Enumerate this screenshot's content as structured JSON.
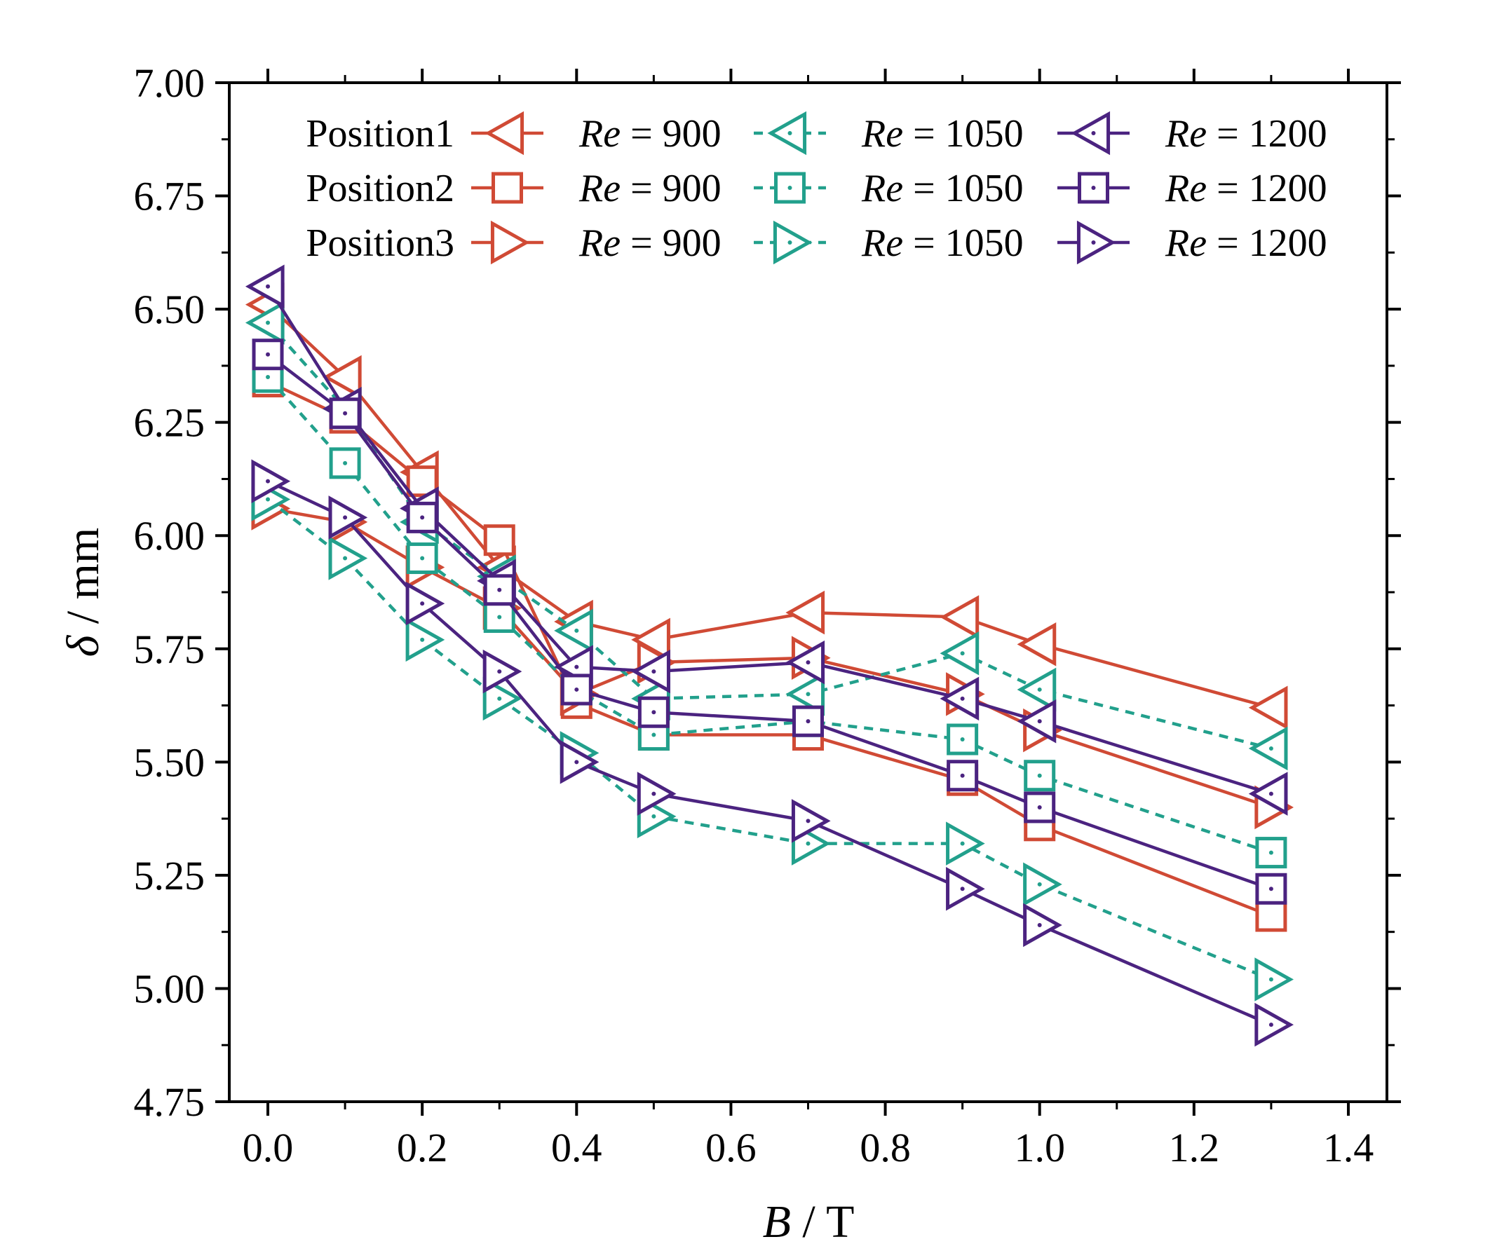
{
  "chart_data": {
    "type": "line",
    "xlabel": {
      "var": "B",
      "unit": " / T"
    },
    "ylabel": {
      "var": "δ",
      "unit": " / mm"
    },
    "xlim": [
      -0.05,
      1.45
    ],
    "ylim": [
      4.75,
      7.0
    ],
    "xticks": [
      0.0,
      0.2,
      0.4,
      0.6,
      0.8,
      1.0,
      1.2,
      1.4
    ],
    "xtick_labels": [
      "0.0",
      "0.2",
      "0.4",
      "0.6",
      "0.8",
      "1.0",
      "1.2",
      "1.4"
    ],
    "yticks": [
      4.75,
      5.0,
      5.25,
      5.5,
      5.75,
      6.0,
      6.25,
      6.5,
      6.75,
      7.0
    ],
    "ytick_labels": [
      "4.75",
      "5.00",
      "5.25",
      "5.50",
      "5.75",
      "6.00",
      "6.25",
      "6.50",
      "6.75",
      "7.00"
    ],
    "grid": false,
    "legend_position": "top",
    "colors": {
      "re900": "#d04a35",
      "re1050": "#22a08c",
      "re1200": "#4b2380"
    },
    "legend": {
      "rows": [
        "Position1",
        "Position2",
        "Position3"
      ],
      "re_prefix": "Re",
      "re_values": [
        "= 900",
        "= 1050",
        "= 1200"
      ]
    },
    "x": [
      0.0,
      0.1,
      0.2,
      0.3,
      0.4,
      0.5,
      0.7,
      0.9,
      1.0,
      1.3
    ],
    "series": [
      {
        "position": "Position1",
        "re": "900",
        "marker": "triangle-left",
        "style": "solid",
        "color": "#d04a35",
        "dotted_marker": false,
        "values": [
          6.51,
          6.35,
          6.14,
          5.93,
          5.81,
          5.77,
          5.83,
          5.82,
          5.76,
          5.62
        ]
      },
      {
        "position": "Position2",
        "re": "900",
        "marker": "square",
        "style": "solid",
        "color": "#d04a35",
        "dotted_marker": false,
        "values": [
          6.34,
          6.26,
          6.12,
          5.99,
          5.63,
          5.56,
          5.56,
          5.46,
          5.36,
          5.16
        ]
      },
      {
        "position": "Position3",
        "re": "900",
        "marker": "triangle-right",
        "style": "solid",
        "color": "#d04a35",
        "dotted_marker": false,
        "values": [
          6.06,
          6.03,
          5.93,
          5.84,
          5.65,
          5.72,
          5.73,
          5.65,
          5.57,
          5.4
        ]
      },
      {
        "position": "Position1",
        "re": "1050",
        "marker": "triangle-left",
        "style": "dashed",
        "color": "#22a08c",
        "dotted_marker": true,
        "values": [
          6.47,
          6.28,
          6.03,
          5.91,
          5.79,
          5.64,
          5.65,
          5.74,
          5.66,
          5.53
        ]
      },
      {
        "position": "Position2",
        "re": "1050",
        "marker": "square",
        "style": "dashed",
        "color": "#22a08c",
        "dotted_marker": true,
        "values": [
          6.35,
          6.16,
          5.95,
          5.82,
          5.66,
          5.56,
          5.59,
          5.55,
          5.47,
          5.3
        ]
      },
      {
        "position": "Position3",
        "re": "1050",
        "marker": "triangle-right",
        "style": "dashed",
        "color": "#22a08c",
        "dotted_marker": true,
        "values": [
          6.08,
          5.95,
          5.77,
          5.64,
          5.52,
          5.38,
          5.32,
          5.32,
          5.23,
          5.02
        ]
      },
      {
        "position": "Position1",
        "re": "1200",
        "marker": "triangle-left",
        "style": "solid",
        "color": "#4b2380",
        "dotted_marker": true,
        "values": [
          6.55,
          6.28,
          6.06,
          5.9,
          5.71,
          5.7,
          5.72,
          5.64,
          5.59,
          5.43
        ]
      },
      {
        "position": "Position2",
        "re": "1200",
        "marker": "square",
        "style": "solid",
        "color": "#4b2380",
        "dotted_marker": true,
        "values": [
          6.4,
          6.27,
          6.04,
          5.88,
          5.66,
          5.61,
          5.59,
          5.47,
          5.4,
          5.22
        ]
      },
      {
        "position": "Position3",
        "re": "1200",
        "marker": "triangle-right",
        "style": "solid",
        "color": "#4b2380",
        "dotted_marker": true,
        "values": [
          6.12,
          6.04,
          5.85,
          5.7,
          5.5,
          5.43,
          5.37,
          5.22,
          5.14,
          4.92
        ]
      }
    ]
  }
}
